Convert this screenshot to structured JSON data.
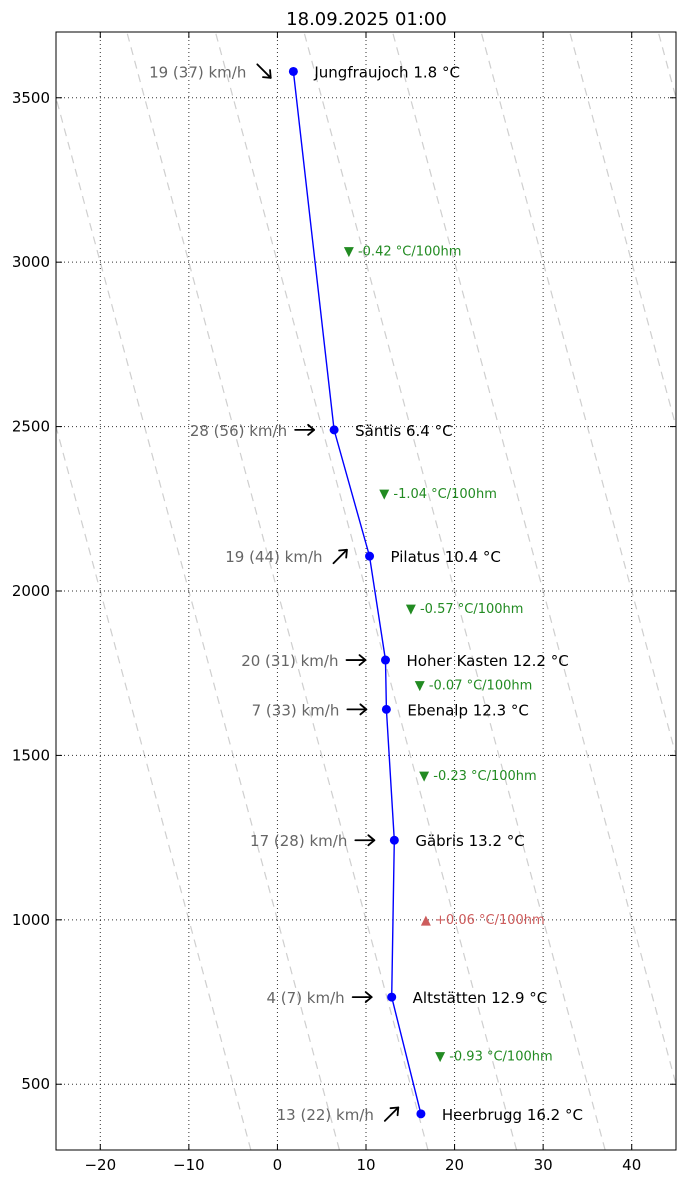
{
  "chart_data": {
    "type": "line",
    "title": "18.09.2025 01:00",
    "xlim": [
      -25,
      45
    ],
    "ylim": [
      300,
      3700
    ],
    "x_ticks": [
      -20,
      -10,
      0,
      10,
      20,
      30,
      40
    ],
    "y_ticks": [
      500,
      1000,
      1500,
      2000,
      2500,
      3000,
      3500
    ],
    "grid": true,
    "dry_adiabat_guides": true,
    "series": [
      {
        "points": [
          {
            "station": "Jungfraujoch",
            "label": "Jungfraujoch 1.8 °C",
            "temp": 1.8,
            "alt": 3580,
            "wind_label": "19 (37) km/h",
            "wind_dir_deg": 45
          },
          {
            "station": "Säntis",
            "label": "Säntis 6.4 °C",
            "temp": 6.4,
            "alt": 2490,
            "wind_label": "28 (56) km/h",
            "wind_dir_deg": 0
          },
          {
            "station": "Pilatus",
            "label": "Pilatus 10.4 °C",
            "temp": 10.4,
            "alt": 2106,
            "wind_label": "19 (44) km/h",
            "wind_dir_deg": -45
          },
          {
            "station": "Hoher Kasten",
            "label": "Hoher Kasten 12.2 °C",
            "temp": 12.2,
            "alt": 1790,
            "wind_label": "20 (31) km/h",
            "wind_dir_deg": 0
          },
          {
            "station": "Ebenalp",
            "label": "Ebenalp 12.3 °C",
            "temp": 12.3,
            "alt": 1640,
            "wind_label": "7 (33) km/h",
            "wind_dir_deg": 0
          },
          {
            "station": "Gäbris",
            "label": "Gäbris 13.2 °C",
            "temp": 13.2,
            "alt": 1242,
            "wind_label": "17 (28) km/h",
            "wind_dir_deg": 0
          },
          {
            "station": "Altstätten",
            "label": "Altstätten 12.9 °C",
            "temp": 12.9,
            "alt": 765,
            "wind_label": "4 (7) km/h",
            "wind_dir_deg": 0
          },
          {
            "station": "Heerbrugg",
            "label": "Heerbrugg 16.2 °C",
            "temp": 16.2,
            "alt": 410,
            "wind_label": "13 (22) km/h",
            "wind_dir_deg": -45
          }
        ]
      }
    ],
    "gradients": [
      {
        "label": "▼ -0.42 °C/100hm",
        "x": 7.5,
        "alt": 3035,
        "color": "#228B22"
      },
      {
        "label": "▼ -1.04 °C/100hm",
        "x": 11.5,
        "alt": 2298,
        "color": "#228B22"
      },
      {
        "label": "▼ -0.57 °C/100hm",
        "x": 14.5,
        "alt": 1948,
        "color": "#228B22"
      },
      {
        "label": "▼ -0.07 °C/100hm",
        "x": 15.5,
        "alt": 1715,
        "color": "#228B22"
      },
      {
        "label": "▼ -0.23 °C/100hm",
        "x": 16.0,
        "alt": 1441,
        "color": "#228B22"
      },
      {
        "label": "▲ +0.06 °C/100hm",
        "x": 16.2,
        "alt": 1003,
        "color": "#CD5C5C"
      },
      {
        "label": "▼ -0.93 °C/100hm",
        "x": 17.8,
        "alt": 587,
        "color": "#228B22"
      }
    ]
  }
}
